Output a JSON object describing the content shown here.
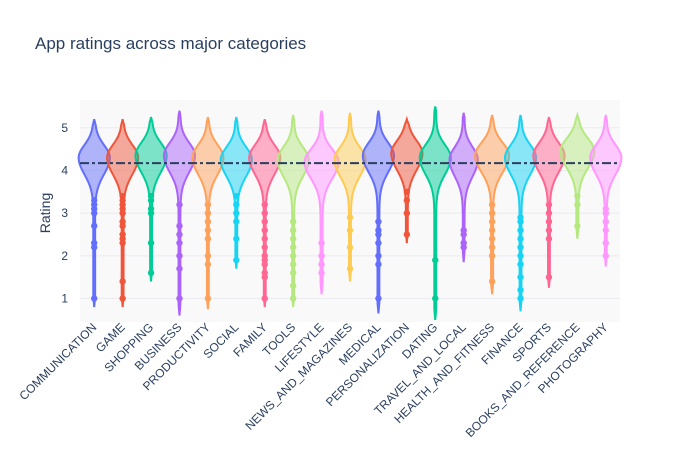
{
  "chart_data": {
    "type": "violin",
    "title": "App ratings across major categories",
    "xlabel": "",
    "ylabel": "Rating",
    "ylim": [
      0.45,
      5.65
    ],
    "yticks": [
      1,
      2,
      3,
      4,
      5
    ],
    "reference_line": {
      "y": 4.17,
      "style": "dashdot",
      "color": "#2a3f5f"
    },
    "grid": true,
    "legend": "none",
    "categories": [
      "COMMUNICATION",
      "GAME",
      "SHOPPING",
      "BUSINESS",
      "PRODUCTIVITY",
      "SOCIAL",
      "FAMILY",
      "TOOLS",
      "LIFESTYLE",
      "NEWS_AND_MAGAZINES",
      "MEDICAL",
      "PERSONALIZATION",
      "DATING",
      "TRAVEL_AND_LOCAL",
      "HEALTH_AND_FITNESS",
      "FINANCE",
      "SPORTS",
      "BOOKS_AND_REFERENCE",
      "PHOTOGRAPHY"
    ],
    "series": [
      {
        "color": "#636efa",
        "min": 0.8,
        "max": 5.2,
        "peak": 4.3,
        "width": 0.55,
        "outliers": [
          1.0,
          2.2,
          2.3,
          2.7,
          3.0,
          3.1,
          3.2,
          3.3
        ]
      },
      {
        "color": "#ef553b",
        "min": 0.8,
        "max": 5.2,
        "peak": 4.3,
        "width": 0.55,
        "outliers": [
          1.0,
          1.4,
          2.3,
          2.4,
          2.5,
          2.7,
          2.8,
          3.0,
          3.1,
          3.2,
          3.3,
          3.4
        ]
      },
      {
        "color": "#00cc96",
        "min": 1.4,
        "max": 5.25,
        "peak": 4.35,
        "width": 0.55,
        "outliers": [
          1.6,
          2.3,
          3.0,
          3.1,
          3.3,
          3.4
        ]
      },
      {
        "color": "#ab63fa",
        "min": 0.6,
        "max": 5.4,
        "peak": 4.35,
        "width": 0.55,
        "outliers": [
          1.0,
          1.7,
          2.0,
          2.3,
          2.5,
          2.7,
          3.2
        ]
      },
      {
        "color": "#ffa15a",
        "min": 0.75,
        "max": 5.25,
        "peak": 4.3,
        "width": 0.55,
        "outliers": [
          1.0,
          1.8,
          2.0,
          2.4,
          2.6,
          2.8,
          3.0,
          3.2
        ]
      },
      {
        "color": "#19d3f3",
        "min": 1.7,
        "max": 5.25,
        "peak": 4.25,
        "width": 0.55,
        "outliers": [
          1.9,
          2.4,
          2.8,
          3.0,
          3.2,
          3.4
        ]
      },
      {
        "color": "#ff6692",
        "min": 0.8,
        "max": 5.2,
        "peak": 4.3,
        "width": 0.55,
        "outliers": [
          1.0,
          1.5,
          1.6,
          1.8,
          1.9,
          2.0,
          2.2,
          2.4,
          2.6,
          2.8,
          3.0,
          3.2
        ]
      },
      {
        "color": "#b6e880",
        "min": 0.8,
        "max": 5.3,
        "peak": 4.25,
        "width": 0.55,
        "outliers": [
          1.0,
          1.3,
          1.6,
          1.8,
          2.0,
          2.2,
          2.4,
          2.6,
          2.8
        ]
      },
      {
        "color": "#ff97ff",
        "min": 1.1,
        "max": 5.4,
        "peak": 4.2,
        "width": 0.6,
        "outliers": [
          1.6,
          1.8,
          2.0,
          2.3
        ]
      },
      {
        "color": "#fecb52",
        "min": 1.4,
        "max": 5.35,
        "peak": 4.25,
        "width": 0.55,
        "outliers": [
          1.7,
          2.2,
          2.6,
          2.9
        ]
      },
      {
        "color": "#636efa",
        "min": 0.65,
        "max": 5.4,
        "peak": 4.35,
        "width": 0.55,
        "outliers": [
          1.0,
          1.8,
          2.0,
          2.3,
          2.5,
          2.6,
          2.8
        ]
      },
      {
        "color": "#ef553b",
        "min": 2.3,
        "max": 5.2,
        "peak": 4.4,
        "width": 0.55,
        "outliers": [
          2.5,
          3.0,
          3.3,
          3.5
        ]
      },
      {
        "color": "#00cc96",
        "min": 0.5,
        "max": 5.5,
        "peak": 4.3,
        "width": 0.55,
        "outliers": [
          1.0,
          1.9
        ]
      },
      {
        "color": "#ab63fa",
        "min": 1.85,
        "max": 5.35,
        "peak": 4.25,
        "width": 0.5,
        "outliers": [
          2.2,
          2.3,
          2.5,
          2.6
        ]
      },
      {
        "color": "#ffa15a",
        "min": 1.1,
        "max": 5.3,
        "peak": 4.35,
        "width": 0.6,
        "outliers": [
          1.4,
          2.0,
          2.2,
          2.4,
          2.6,
          2.8,
          3.0,
          3.2
        ]
      },
      {
        "color": "#19d3f3",
        "min": 0.7,
        "max": 5.3,
        "peak": 4.3,
        "width": 0.55,
        "outliers": [
          1.0,
          1.2,
          1.5,
          1.8,
          2.0,
          2.2,
          2.4,
          2.6,
          2.8,
          2.9
        ]
      },
      {
        "color": "#ff6692",
        "min": 1.25,
        "max": 5.25,
        "peak": 4.35,
        "width": 0.55,
        "outliers": [
          1.5,
          2.4,
          2.6,
          2.8,
          3.0,
          3.2
        ]
      },
      {
        "color": "#b6e880",
        "min": 2.4,
        "max": 5.3,
        "peak": 4.45,
        "width": 0.6,
        "outliers": [
          2.7,
          3.2,
          3.4
        ]
      },
      {
        "color": "#ff97ff",
        "min": 1.75,
        "max": 5.3,
        "peak": 4.3,
        "width": 0.55,
        "outliers": [
          2.0,
          2.3,
          2.6,
          2.8,
          3.0,
          3.1
        ]
      }
    ]
  }
}
